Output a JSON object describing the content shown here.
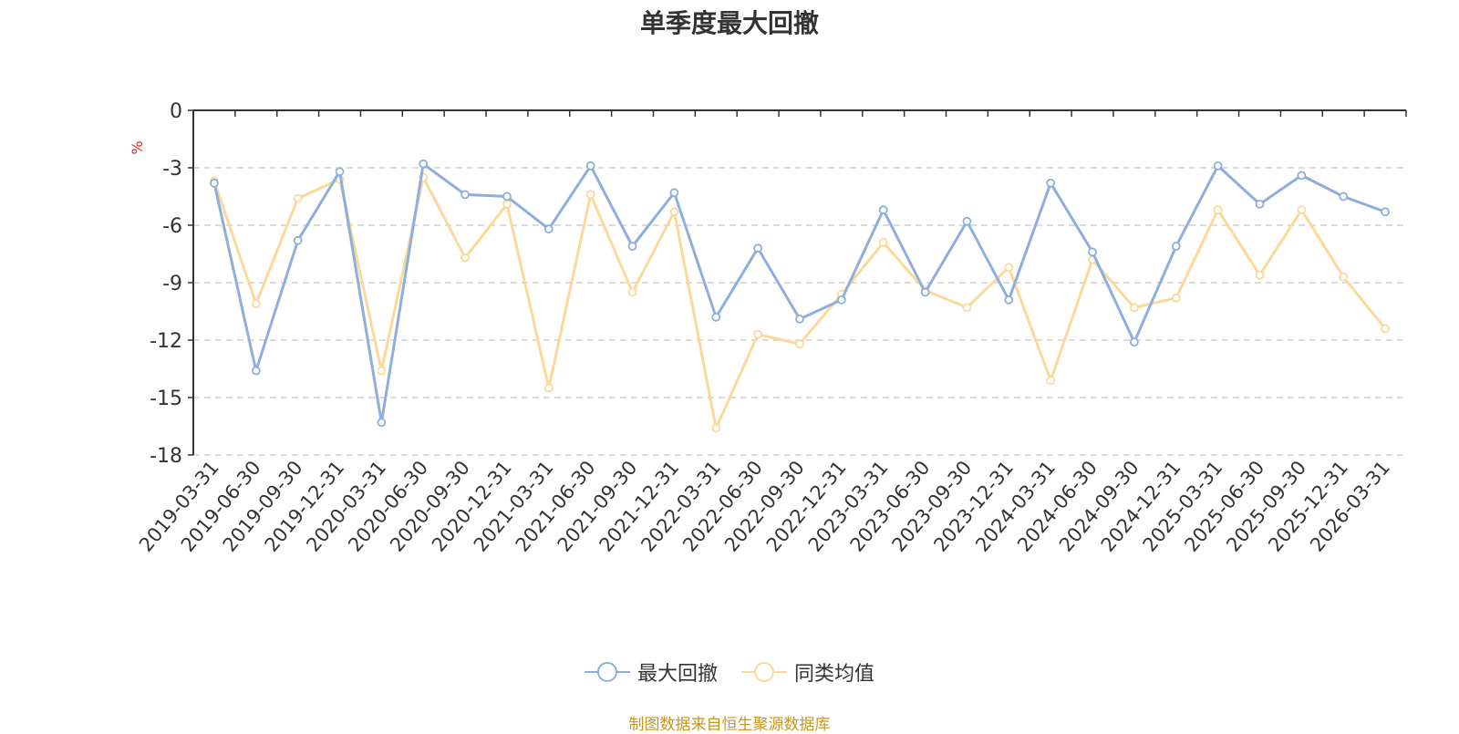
{
  "chart_data": {
    "type": "line",
    "title": "单季度最大回撤",
    "ylabel": "%",
    "xlabel": "",
    "ylim": [
      -18,
      0
    ],
    "yticks": [
      0,
      -3,
      -6,
      -9,
      -12,
      -15,
      -18
    ],
    "grid": true,
    "legend_position": "bottom",
    "categories": [
      "2019-03-31",
      "2019-06-30",
      "2019-09-30",
      "2019-12-31",
      "2020-03-31",
      "2020-06-30",
      "2020-09-30",
      "2020-12-31",
      "2021-03-31",
      "2021-06-30",
      "2021-09-30",
      "2021-12-31",
      "2022-03-31",
      "2022-06-30",
      "2022-09-30",
      "2022-12-31",
      "2023-03-31",
      "2023-06-30",
      "2023-09-30",
      "2023-12-31",
      "2024-03-31",
      "2024-06-30",
      "2024-09-30",
      "2024-12-31",
      "2025-03-31",
      "2025-06-30",
      "2025-09-30",
      "2025-12-31",
      "2026-03-31"
    ],
    "series": [
      {
        "name": "最大回撤",
        "color": "#8eaedd",
        "values": [
          -3.8,
          -13.6,
          -6.8,
          -3.2,
          -16.3,
          -2.8,
          -4.4,
          -4.5,
          -6.2,
          -2.9,
          -7.1,
          -4.3,
          -10.8,
          -7.2,
          -10.9,
          -9.9,
          -5.2,
          -9.5,
          -5.8,
          -9.9,
          -3.8,
          -7.4,
          -12.1,
          -7.1,
          -2.9,
          -4.9,
          -3.4,
          -4.5,
          -5.3
        ]
      },
      {
        "name": "同类均值",
        "color": "#fbd99a",
        "values": [
          -3.7,
          -10.1,
          -4.6,
          -3.6,
          -13.6,
          -3.5,
          -7.7,
          -4.9,
          -14.5,
          -4.4,
          -9.5,
          -5.3,
          -16.6,
          -11.7,
          -12.2,
          -9.6,
          -6.9,
          -9.4,
          -10.3,
          -8.2,
          -14.1,
          -7.8,
          -10.3,
          -9.8,
          -5.2,
          -8.6,
          -5.2,
          -8.7,
          -11.4
        ]
      }
    ]
  },
  "source_note": "制图数据来自恒生聚源数据库"
}
